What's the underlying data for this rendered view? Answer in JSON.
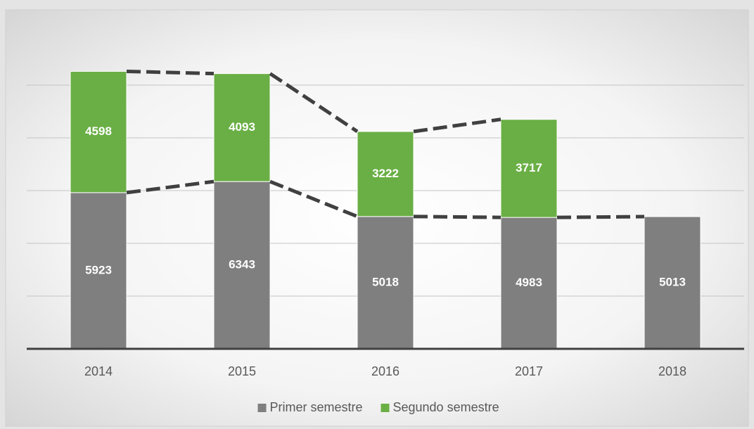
{
  "chart_data": {
    "type": "stacked_bar",
    "categories": [
      "2014",
      "2015",
      "2016",
      "2017",
      "2018"
    ],
    "series": [
      {
        "name": "Primer semestre",
        "color": "#7f7f7f",
        "values": [
          5923,
          6343,
          5018,
          4983,
          5013
        ]
      },
      {
        "name": "Segundo semestre",
        "color": "#6aaf45",
        "values": [
          4598,
          4093,
          3222,
          3717,
          null
        ]
      }
    ],
    "ylim": [
      0,
      12000
    ],
    "yticks": [
      0,
      2000,
      4000,
      6000,
      8000,
      10000
    ],
    "grid": true,
    "legend": "bottom"
  }
}
